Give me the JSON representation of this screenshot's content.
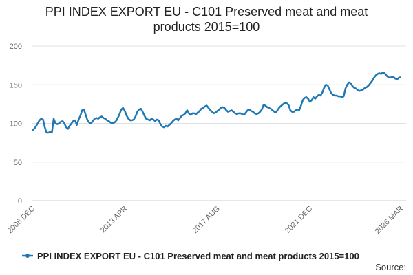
{
  "chart_data": {
    "type": "line",
    "title": "PPI INDEX EXPORT EU - C101 Preserved meat and meat products 2015=100",
    "source": "Source:",
    "categories": [
      "2008 DEC",
      null,
      null,
      null,
      null,
      null,
      null,
      null,
      null,
      null,
      null,
      null,
      null,
      null,
      null,
      null,
      null,
      null,
      null,
      null,
      null,
      null,
      null,
      null,
      null,
      null,
      null,
      null,
      null,
      null,
      null,
      null,
      null,
      null,
      null,
      null,
      null,
      null,
      null,
      null,
      null,
      null,
      null,
      null,
      null,
      null,
      null,
      null,
      null,
      null,
      null,
      null,
      "2013 APR",
      null,
      null,
      null,
      null,
      null,
      null,
      null,
      null,
      null,
      null,
      null,
      null,
      null,
      null,
      null,
      null,
      null,
      null,
      null,
      null,
      null,
      null,
      null,
      null,
      null,
      null,
      null,
      null,
      null,
      null,
      null,
      null,
      null,
      null,
      null,
      null,
      null,
      null,
      null,
      null,
      null,
      null,
      null,
      null,
      null,
      null,
      null,
      null,
      null,
      null,
      null,
      "2017 AUG",
      null,
      null,
      null,
      null,
      null,
      null,
      null,
      null,
      null,
      null,
      null,
      null,
      null,
      null,
      null,
      null,
      null,
      null,
      null,
      null,
      null,
      null,
      null,
      null,
      null,
      null,
      null,
      null,
      null,
      null,
      null,
      null,
      null,
      null,
      null,
      null,
      null,
      null,
      null,
      null,
      null,
      null,
      null,
      null,
      null,
      null,
      null,
      null,
      null,
      null,
      null,
      "2021 DEC",
      null,
      null,
      null,
      null,
      null,
      null,
      null,
      null,
      null,
      null,
      null,
      null,
      null,
      null,
      null,
      null,
      null,
      null,
      null,
      null,
      null,
      null,
      null,
      null,
      null,
      null,
      null,
      null,
      null,
      null,
      null,
      null,
      null,
      null,
      null,
      null,
      null,
      null,
      null,
      null,
      null,
      null,
      null,
      null,
      null,
      null,
      null,
      null,
      null,
      null,
      "2026 MAR"
    ],
    "series": [
      {
        "name": "PPI INDEX EXPORT EU - C101 Preserved meat and meat products 2015=100",
        "color": "#1f78b4",
        "values": [
          91,
          93,
          96,
          100,
          104,
          106,
          105,
          95,
          88,
          88,
          89,
          88,
          106,
          100,
          99,
          100,
          102,
          103,
          100,
          95,
          93,
          97,
          100,
          103,
          104,
          98,
          105,
          110,
          117,
          118,
          111,
          104,
          101,
          100,
          103,
          106,
          107,
          106,
          108,
          109,
          107,
          106,
          104,
          103,
          101,
          100,
          101,
          103,
          107,
          112,
          118,
          120,
          116,
          110,
          106,
          104,
          104,
          105,
          109,
          115,
          118,
          119,
          115,
          110,
          106,
          105,
          104,
          106,
          105,
          103,
          105,
          104,
          99,
          96,
          95,
          97,
          96,
          98,
          100,
          103,
          105,
          106,
          104,
          107,
          110,
          111,
          113,
          117,
          113,
          111,
          113,
          113,
          112,
          114,
          116,
          119,
          120,
          122,
          123,
          120,
          117,
          115,
          113,
          114,
          116,
          118,
          120,
          121,
          120,
          117,
          115,
          116,
          117,
          115,
          113,
          112,
          113,
          113,
          112,
          111,
          114,
          117,
          118,
          116,
          115,
          113,
          112,
          113,
          115,
          118,
          124,
          123,
          121,
          120,
          119,
          117,
          115,
          114,
          118,
          121,
          123,
          125,
          127,
          126,
          124,
          117,
          115,
          115,
          117,
          118,
          117,
          123,
          130,
          133,
          134,
          132,
          128,
          130,
          134,
          132,
          135,
          137,
          136,
          140,
          146,
          150,
          149,
          144,
          139,
          137,
          136,
          136,
          135,
          135,
          134,
          135,
          145,
          150,
          153,
          152,
          148,
          146,
          145,
          143,
          142,
          143,
          144,
          146,
          147,
          149,
          152,
          155,
          159,
          162,
          164,
          165,
          164,
          166,
          165,
          162,
          160,
          159,
          160,
          160,
          158,
          157,
          159,
          160
        ]
      }
    ],
    "ylim": [
      0,
      200
    ],
    "yticks": [
      0,
      50,
      100,
      150,
      200
    ],
    "grid": true
  }
}
